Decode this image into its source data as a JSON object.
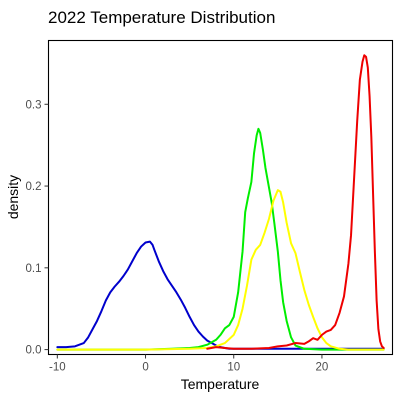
{
  "chart_data": {
    "type": "line",
    "title": "2022 Temperature Distribution",
    "xlabel": "Temperature",
    "ylabel": "density",
    "xlim": [
      -11,
      28
    ],
    "ylim": [
      -0.006,
      0.378
    ],
    "xticks": [
      -10,
      0,
      10,
      20
    ],
    "xtick_labels": [
      "-10",
      "0",
      "10",
      "20"
    ],
    "yticks": [
      0.0,
      0.1,
      0.2,
      0.3
    ],
    "ytick_labels": [
      "0.0",
      "0.1",
      "0.2",
      "0.3"
    ],
    "grid": false,
    "legend": "none",
    "series": [
      {
        "color": "#0000cc",
        "x": [
          -10.0,
          -9.0,
          -8.0,
          -7.0,
          -6.5,
          -6.0,
          -5.5,
          -5.0,
          -4.5,
          -4.0,
          -3.5,
          -3.0,
          -2.5,
          -2.0,
          -1.5,
          -1.0,
          -0.5,
          0.0,
          0.5,
          0.8,
          1.0,
          1.5,
          2.0,
          2.5,
          3.0,
          3.5,
          4.0,
          4.5,
          5.0,
          5.5,
          6.0,
          6.5,
          7.0,
          7.5,
          8.0,
          8.5,
          9.0,
          9.5,
          10.0,
          11.0,
          12.0,
          15.0,
          20.0,
          27.0
        ],
        "y": [
          0.003,
          0.003,
          0.004,
          0.008,
          0.015,
          0.025,
          0.035,
          0.047,
          0.06,
          0.07,
          0.077,
          0.083,
          0.09,
          0.098,
          0.108,
          0.118,
          0.126,
          0.131,
          0.132,
          0.128,
          0.122,
          0.108,
          0.096,
          0.086,
          0.078,
          0.07,
          0.061,
          0.051,
          0.04,
          0.03,
          0.022,
          0.016,
          0.011,
          0.008,
          0.005,
          0.003,
          0.002,
          0.001,
          0.001,
          0.001,
          0.001,
          0.001,
          0.001,
          0.001
        ]
      },
      {
        "color": "#00ee00",
        "x": [
          -10.0,
          0.0,
          3.0,
          5.0,
          6.0,
          7.0,
          8.0,
          8.5,
          9.0,
          9.5,
          10.0,
          10.5,
          11.0,
          11.3,
          11.6,
          12.0,
          12.3,
          12.6,
          12.8,
          13.0,
          13.3,
          13.6,
          14.0,
          14.3,
          14.6,
          15.0,
          15.3,
          15.6,
          16.0,
          16.5,
          17.0,
          18.0,
          20.0,
          27.0
        ],
        "y": [
          0.0,
          0.0,
          0.001,
          0.002,
          0.003,
          0.006,
          0.012,
          0.018,
          0.026,
          0.03,
          0.04,
          0.07,
          0.12,
          0.168,
          0.185,
          0.205,
          0.24,
          0.262,
          0.27,
          0.265,
          0.245,
          0.222,
          0.198,
          0.18,
          0.155,
          0.12,
          0.085,
          0.058,
          0.035,
          0.015,
          0.005,
          0.001,
          0.0,
          0.0
        ]
      },
      {
        "color": "#ffff00",
        "x": [
          -10.0,
          0.0,
          5.0,
          7.0,
          8.0,
          9.0,
          10.0,
          10.5,
          11.0,
          11.5,
          12.0,
          12.5,
          13.0,
          13.5,
          14.0,
          14.5,
          15.0,
          15.3,
          15.6,
          16.0,
          16.5,
          17.0,
          17.5,
          18.0,
          18.5,
          19.0,
          19.5,
          20.0,
          20.5,
          21.0,
          22.0,
          23.0,
          25.0,
          27.0
        ],
        "y": [
          0.0,
          0.0,
          0.001,
          0.002,
          0.004,
          0.008,
          0.018,
          0.03,
          0.05,
          0.078,
          0.11,
          0.122,
          0.128,
          0.143,
          0.16,
          0.182,
          0.195,
          0.193,
          0.18,
          0.155,
          0.13,
          0.118,
          0.095,
          0.073,
          0.055,
          0.04,
          0.026,
          0.015,
          0.008,
          0.004,
          0.001,
          0.0,
          0.0,
          0.0
        ]
      },
      {
        "color": "#ee0000",
        "x": [
          7.0,
          8.0,
          9.0,
          10.0,
          12.0,
          14.0,
          15.0,
          16.0,
          17.0,
          18.0,
          18.5,
          19.0,
          19.5,
          20.0,
          20.5,
          21.0,
          21.5,
          22.0,
          22.5,
          23.0,
          23.3,
          23.6,
          24.0,
          24.3,
          24.6,
          24.8,
          25.0,
          25.2,
          25.4,
          25.6,
          25.8,
          26.0,
          26.2,
          26.4,
          26.6,
          26.8,
          27.0
        ],
        "y": [
          0.001,
          0.003,
          0.002,
          0.001,
          0.001,
          0.002,
          0.004,
          0.005,
          0.008,
          0.007,
          0.01,
          0.014,
          0.012,
          0.018,
          0.022,
          0.024,
          0.03,
          0.045,
          0.065,
          0.105,
          0.14,
          0.2,
          0.28,
          0.33,
          0.352,
          0.36,
          0.358,
          0.345,
          0.31,
          0.26,
          0.19,
          0.12,
          0.06,
          0.025,
          0.01,
          0.004,
          0.002
        ]
      }
    ]
  }
}
